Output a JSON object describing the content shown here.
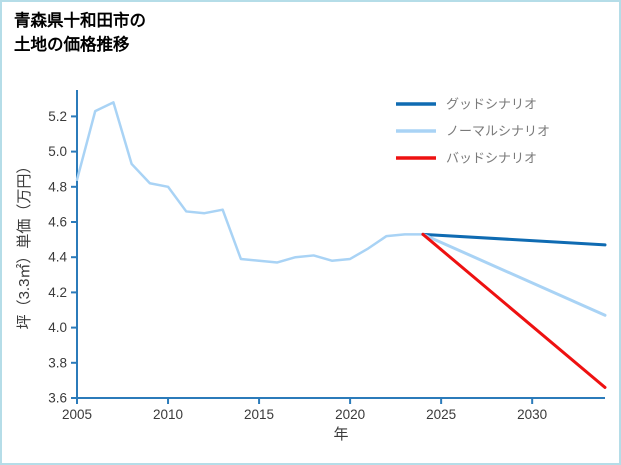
{
  "page": {
    "border_color": "#b5dde8",
    "background_color": "#ffffff"
  },
  "header": {
    "title_lines": [
      "青森県十和田市の",
      "土地の価格推移"
    ]
  },
  "chart_data": {
    "type": "line",
    "title": "青森県十和田市の土地の価格推移",
    "xlabel": "年",
    "ylabel": "坪（3.3㎡）単価（万円）",
    "xlim": [
      2005,
      2034
    ],
    "ylim": [
      3.6,
      5.35
    ],
    "xticks": [
      2005,
      2010,
      2015,
      2020,
      2025,
      2030
    ],
    "yticks": [
      3.6,
      3.8,
      4.0,
      4.2,
      4.4,
      4.6,
      4.8,
      5.0,
      5.2
    ],
    "grid": false,
    "axis_color": "#2b7bba",
    "tick_label_color": "#3a3a3a",
    "legend_text_color": "#7a7a7a",
    "series": [
      {
        "key": "historical",
        "name": "historical-price",
        "color": "#a9d3f5",
        "width": 2.5,
        "x": [
          2005,
          2006,
          2007,
          2008,
          2009,
          2010,
          2011,
          2012,
          2013,
          2014,
          2015,
          2016,
          2017,
          2018,
          2019,
          2020,
          2021,
          2022,
          2023,
          2024
        ],
        "y": [
          4.84,
          5.23,
          5.28,
          4.93,
          4.82,
          4.8,
          4.66,
          4.65,
          4.67,
          4.39,
          4.38,
          4.37,
          4.4,
          4.41,
          4.38,
          4.39,
          4.45,
          4.52,
          4.53,
          4.53
        ]
      },
      {
        "key": "good",
        "name": "グッドシナリオ",
        "color": "#0f6bb2",
        "width": 3,
        "x": [
          2024,
          2034
        ],
        "y": [
          4.53,
          4.47
        ]
      },
      {
        "key": "normal",
        "name": "ノーマルシナリオ",
        "color": "#a9d3f5",
        "width": 3,
        "x": [
          2024,
          2034
        ],
        "y": [
          4.53,
          4.07
        ]
      },
      {
        "key": "bad",
        "name": "バッドシナリオ",
        "color": "#ee1111",
        "width": 3,
        "x": [
          2024,
          2034
        ],
        "y": [
          4.53,
          3.66
        ]
      }
    ],
    "legend": {
      "position": "upper-right",
      "items": [
        {
          "key": "good",
          "label": "グッドシナリオ",
          "color": "#0f6bb2"
        },
        {
          "key": "normal",
          "label": "ノーマルシナリオ",
          "color": "#a9d3f5"
        },
        {
          "key": "bad",
          "label": "バッドシナリオ",
          "color": "#ee1111"
        }
      ]
    }
  }
}
